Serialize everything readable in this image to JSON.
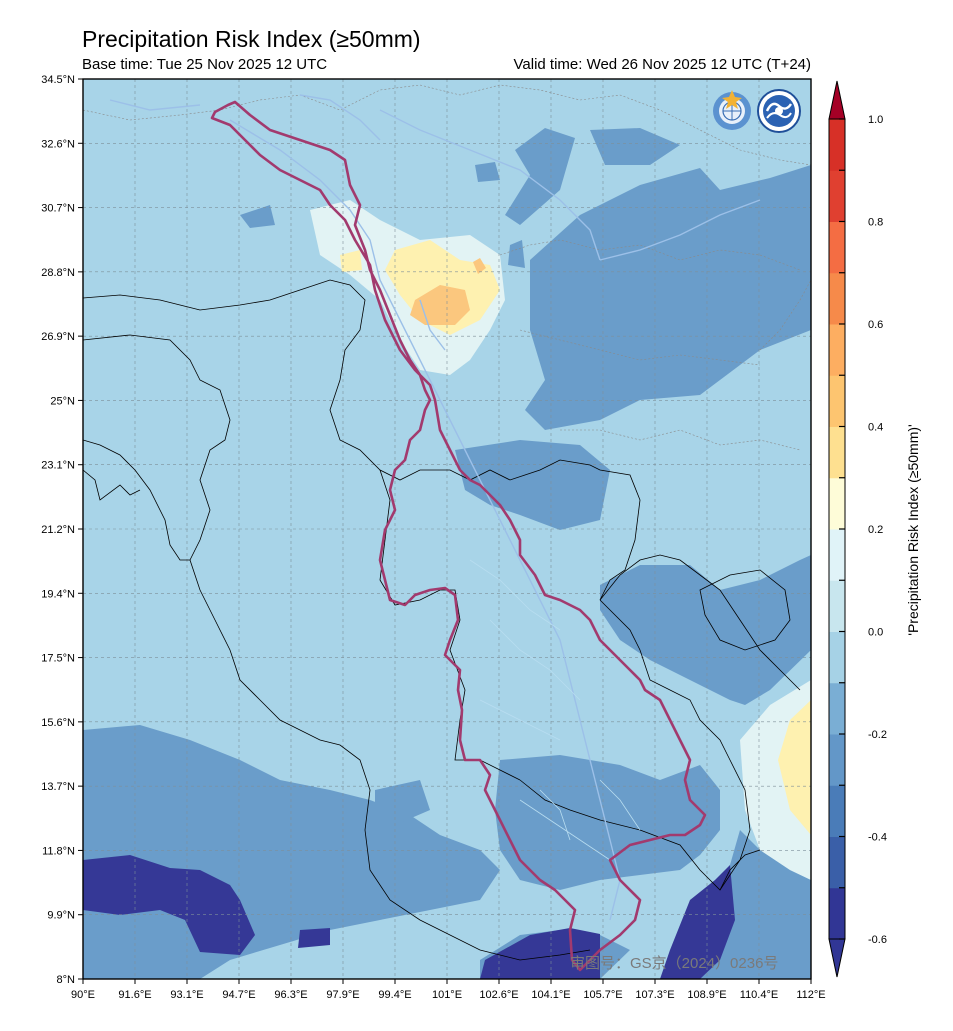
{
  "title": "Precipitation Risk Index (≥50mm)",
  "base_time": "Base time: Tue 25 Nov 2025 12 UTC",
  "valid_time": "Valid time: Wed 26 Nov 2025 12 UTC (T+24)",
  "colorbar_label": "'Precipitation Risk Index (≥50mm)'",
  "watermark": "审图号：GS京（2024）0236号",
  "lat_labels": [
    "34.5°N",
    "32.6°N",
    "30.7°N",
    "28.8°N",
    "26.9°N",
    "25°N",
    "23.1°N",
    "21.2°N",
    "19.4°N",
    "17.5°N",
    "15.6°N",
    "13.7°N",
    "11.8°N",
    "9.9°N",
    "8°N"
  ],
  "lon_labels": [
    "90°E",
    "91.6°E",
    "93.1°E",
    "94.7°E",
    "96.3°E",
    "97.9°E",
    "99.4°E",
    "101°E",
    "102.6°E",
    "104.1°E",
    "105.7°E",
    "107.3°E",
    "108.9°E",
    "110.4°E",
    "112°E"
  ],
  "colorbar_ticks": [
    "1.0",
    "0.8",
    "0.6",
    "0.4",
    "0.2",
    "0.0",
    "-0.2",
    "-0.4",
    "-0.6"
  ],
  "colorbar_levels": [
    -0.6,
    -0.5,
    -0.4,
    -0.3,
    -0.2,
    -0.1,
    0.0,
    0.1,
    0.2,
    0.3,
    0.4,
    0.5,
    0.6,
    0.7,
    0.8,
    0.9,
    1.0
  ],
  "colorbar_colors": [
    "#313695",
    "#3a5fa8",
    "#4a7cb8",
    "#6397c8",
    "#7aaed4",
    "#a6d2e6",
    "#c8e6ee",
    "#e0f3f8",
    "#fefcd8",
    "#fee090",
    "#fdc570",
    "#fdae61",
    "#f68a4a",
    "#f46d43",
    "#e04030",
    "#d73027",
    "#a50026"
  ],
  "background_color": "#a8d4e8",
  "logos": [
    "wmo-logo-icon",
    "cma-logo-icon"
  ]
}
